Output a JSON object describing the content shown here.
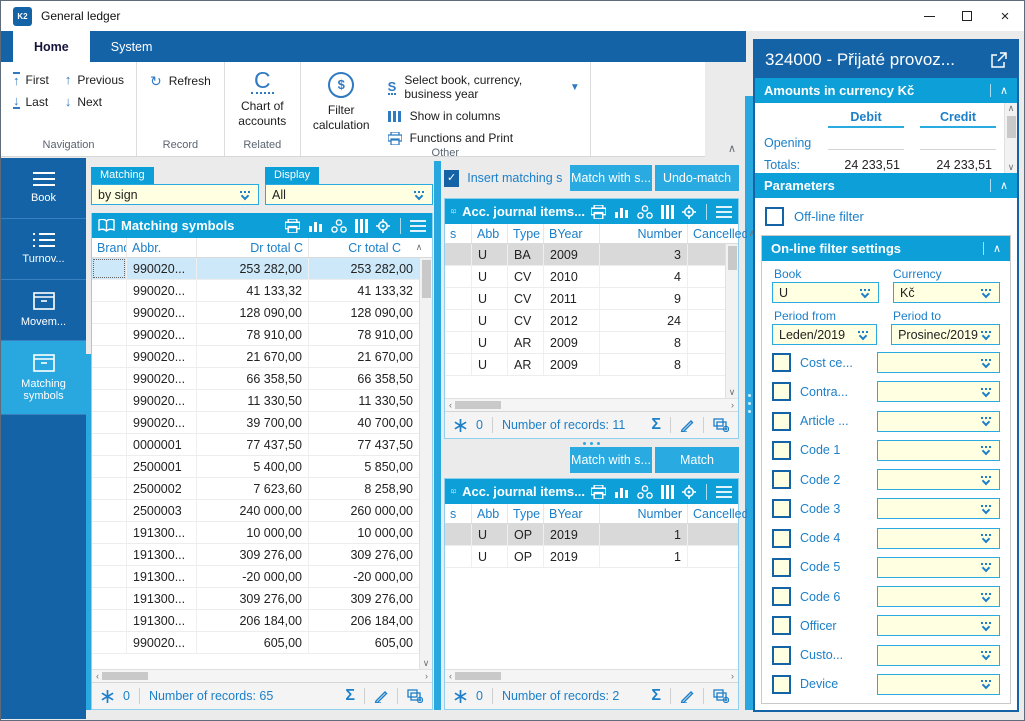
{
  "window": {
    "title": "General ledger",
    "app_badge": "K2"
  },
  "ribbon": {
    "tabs": {
      "home": "Home",
      "system": "System"
    },
    "nav": {
      "first": "First",
      "previous": "Previous",
      "last": "Last",
      "next": "Next",
      "group": "Navigation"
    },
    "record": {
      "refresh": "Refresh",
      "group": "Record"
    },
    "related": {
      "chart_icon": "C",
      "chart": "Chart of accounts",
      "group": "Related"
    },
    "other": {
      "filter": "Filter calculation",
      "filter_icon": "$",
      "select_icon": "S",
      "select": "Select book, currency, business year",
      "columns": "Show in columns",
      "print": "Functions and Print",
      "group": "Other"
    }
  },
  "sidebar": {
    "items": [
      {
        "label": "Book"
      },
      {
        "label": "Turnov..."
      },
      {
        "label": "Movem..."
      },
      {
        "label": "Matching symbols",
        "active": true
      }
    ]
  },
  "left": {
    "matching_label": "Matching",
    "matching_value": "by sign",
    "display_label": "Display",
    "display_value": "All",
    "title": "Matching symbols",
    "cols": {
      "brand": "Brand",
      "abbr": "Abbr.",
      "dr": "Dr total C",
      "cr": "Cr total C"
    },
    "rows": [
      {
        "check": "✓",
        "sel": true,
        "abbr": "990020...",
        "dr": "253 282,00",
        "cr": "253 282,00"
      },
      {
        "check": "✓",
        "abbr": "990020...",
        "dr": "41 133,32",
        "cr": "41 133,32"
      },
      {
        "check": "✓",
        "abbr": "990020...",
        "dr": "128 090,00",
        "cr": "128 090,00"
      },
      {
        "check": "✓",
        "abbr": "990020...",
        "dr": "78 910,00",
        "cr": "78 910,00"
      },
      {
        "check": "✓",
        "abbr": "990020...",
        "dr": "21 670,00",
        "cr": "21 670,00"
      },
      {
        "check": "✓",
        "abbr": "990020...",
        "dr": "66 358,50",
        "cr": "66 358,50"
      },
      {
        "check": "✓",
        "abbr": "990020...",
        "dr": "11 330,50",
        "cr": "11 330,50"
      },
      {
        "check": "",
        "abbr": "990020...",
        "dr": "39 700,00",
        "cr": "40 700,00"
      },
      {
        "check": "✓",
        "abbr": "0000001",
        "dr": "77 437,50",
        "cr": "77 437,50"
      },
      {
        "check": "",
        "abbr": "2500001",
        "dr": "5 400,00",
        "cr": "5 850,00"
      },
      {
        "check": "",
        "abbr": "2500002",
        "dr": "7 623,60",
        "cr": "8 258,90"
      },
      {
        "check": "",
        "abbr": "2500003",
        "dr": "240 000,00",
        "cr": "260 000,00"
      },
      {
        "check": "✓",
        "abbr": "191300...",
        "dr": "10 000,00",
        "cr": "10 000,00"
      },
      {
        "check": "✓",
        "abbr": "191300...",
        "dr": "309 276,00",
        "cr": "309 276,00"
      },
      {
        "check": "✓",
        "abbr": "191300...",
        "dr": "-20 000,00",
        "cr": "-20 000,00"
      },
      {
        "check": "✓",
        "abbr": "191300...",
        "dr": "309 276,00",
        "cr": "309 276,00"
      },
      {
        "check": "✓",
        "abbr": "191300...",
        "dr": "206 184,00",
        "cr": "206 184,00"
      },
      {
        "check": "✓",
        "abbr": "990020...",
        "dr": "605,00",
        "cr": "605,00"
      }
    ],
    "status": {
      "count": "0",
      "records": "Number of records: 65"
    }
  },
  "mid_top": {
    "insert_check": "✓",
    "insert_label": "Insert matching s...",
    "btn1": "Match with s...",
    "btn2": "Undo-match",
    "title": "Acc. journal items...",
    "cols": {
      "s": "s",
      "abb": "Abb",
      "type": "Type",
      "byear": "BYear",
      "number": "Number",
      "cancelled": "Cancelled"
    },
    "rows": [
      {
        "sel": true,
        "s": "",
        "abb": "U",
        "type": "BA",
        "byear": "2009",
        "number": "3",
        "cancelled": ""
      },
      {
        "s": "",
        "abb": "U",
        "type": "CV",
        "byear": "2010",
        "number": "4",
        "cancelled": ""
      },
      {
        "s": "",
        "abb": "U",
        "type": "CV",
        "byear": "2011",
        "number": "9",
        "cancelled": ""
      },
      {
        "s": "",
        "abb": "U",
        "type": "CV",
        "byear": "2012",
        "number": "24",
        "cancelled": ""
      },
      {
        "s": "",
        "abb": "U",
        "type": "AR",
        "byear": "2009",
        "number": "8",
        "cancelled": ""
      },
      {
        "s": "",
        "abb": "U",
        "type": "AR",
        "byear": "2009",
        "number": "8",
        "cancelled": ""
      }
    ],
    "status": {
      "count": "0",
      "records": "Number of records: 11"
    }
  },
  "mid_bottom": {
    "btn1": "Match with s...",
    "btn2": "Match",
    "title": "Acc. journal items...",
    "cols": {
      "s": "s",
      "abb": "Abb",
      "type": "Type",
      "byear": "BYear",
      "number": "Number",
      "cancelled": "Cancelled"
    },
    "rows": [
      {
        "sel": true,
        "s": "",
        "abb": "U",
        "type": "OP",
        "byear": "2019",
        "number": "1",
        "cancelled": ""
      },
      {
        "s": "",
        "abb": "U",
        "type": "OP",
        "byear": "2019",
        "number": "1",
        "cancelled": ""
      }
    ],
    "status": {
      "count": "0",
      "records": "Number of records: 2"
    }
  },
  "right": {
    "title": "324000 - Přijaté provoz...",
    "amounts": {
      "title": "Amounts in currency Kč",
      "debit": "Debit",
      "credit": "Credit",
      "opening_label": "Opening",
      "totals_label": "Totals:",
      "totals_debit": "24 233,51",
      "totals_credit": "24 233,51"
    },
    "parameters": {
      "title": "Parameters",
      "offline_label": "Off-line filter"
    },
    "online": {
      "title": "On-line filter settings",
      "book_label": "Book",
      "book_value": "U",
      "currency_label": "Currency",
      "currency_value": "Kč",
      "period_from_label": "Period from",
      "period_from_value": "Leden/2019",
      "period_to_label": "Period to",
      "period_to_value": "Prosinec/2019",
      "filters": [
        {
          "label": "Cost ce..."
        },
        {
          "label": "Contra..."
        },
        {
          "label": "Article ..."
        },
        {
          "label": "Code 1"
        },
        {
          "label": "Code 2"
        },
        {
          "label": "Code 3"
        },
        {
          "label": "Code 4"
        },
        {
          "label": "Code 5"
        },
        {
          "label": "Code 6"
        },
        {
          "label": "Officer"
        },
        {
          "label": "Custo..."
        },
        {
          "label": "Device"
        }
      ]
    }
  },
  "colors": {
    "dark_blue": "#1563a7",
    "bright_blue": "#0d9fd8",
    "accent_blue": "#29abe2",
    "link_blue": "#1c7fc8",
    "input_yellow": "#ffffe1"
  }
}
